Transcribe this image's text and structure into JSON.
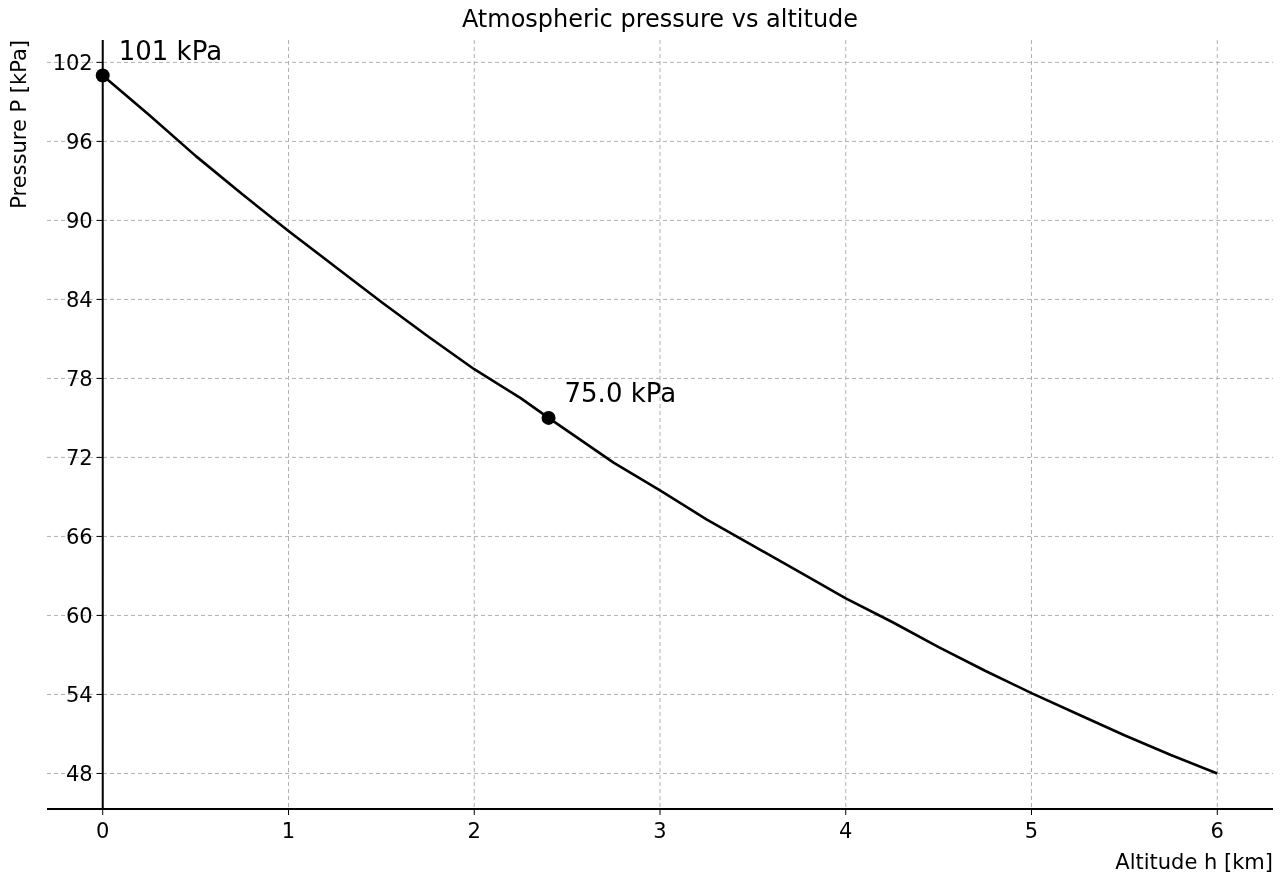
{
  "chart_data": {
    "type": "line",
    "title": "Atmospheric pressure vs altitude",
    "xlabel": "Altitude h [km]",
    "ylabel": "Pressure P [kPa]",
    "xlim": [
      -0.3,
      6.3
    ],
    "xticks": [
      0,
      1,
      2,
      3,
      4,
      5,
      6
    ],
    "ylim": [
      45.3,
      103.7
    ],
    "yticks": [
      48,
      54,
      60,
      66,
      72,
      78,
      84,
      90,
      96,
      102
    ],
    "grid": true,
    "series": [
      {
        "color": "#000000",
        "x": [
          0,
          0.25,
          0.5,
          0.75,
          1,
          1.25,
          1.5,
          1.75,
          2,
          2.25,
          2.4,
          2.75,
          3,
          3.25,
          3.5,
          3.75,
          4,
          4.25,
          4.5,
          4.75,
          5,
          5.25,
          5.5,
          5.75,
          6
        ],
        "values": [
          101,
          98,
          94.9,
          92,
          89.2,
          86.5,
          83.8,
          81.2,
          78.7,
          76.5,
          75,
          71.6,
          69.5,
          67.3,
          65.3,
          63.3,
          61.3,
          59.5,
          57.6,
          55.8,
          54.1,
          52.5,
          50.9,
          49.4,
          48
        ],
        "marker": "none"
      },
      {
        "type": "scatter",
        "color": "#000000",
        "x": [
          0,
          2.4
        ],
        "values": [
          101,
          75
        ],
        "marker": "circle"
      }
    ],
    "annotations": [
      {
        "text": "101 kPa",
        "x": 0,
        "y": 101
      },
      {
        "text": "75.0 kPa",
        "x": 2.4,
        "y": 75
      }
    ]
  }
}
